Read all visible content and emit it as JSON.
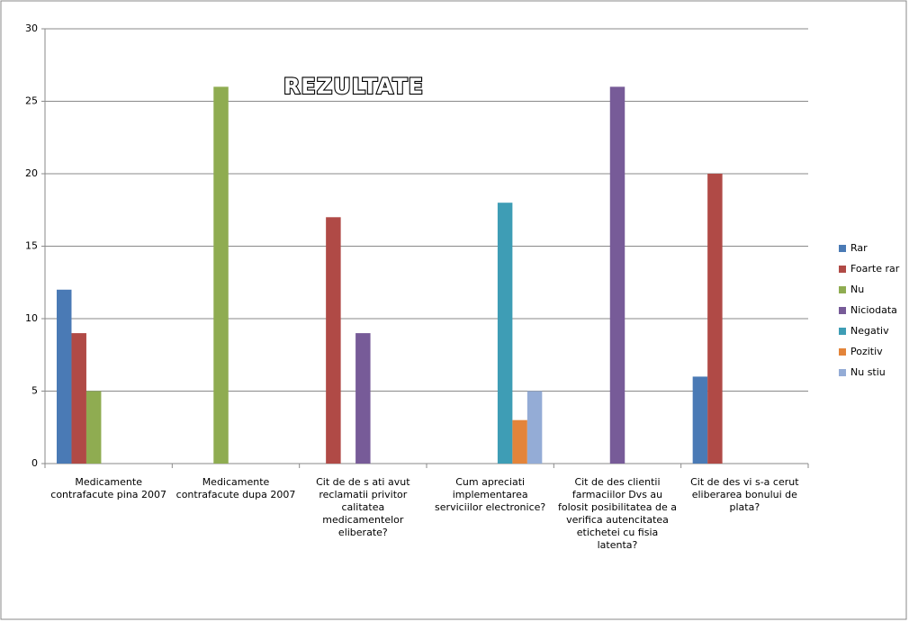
{
  "chart_data": {
    "type": "bar",
    "title": "REZULTATE",
    "categories": [
      "Medicamente contrafacute pina 2007",
      "Medicamente contrafacute dupa 2007",
      "Cit de de s ati avut reclamatii privitor calitatea medicamentelor eliberate?",
      "Cum apreciati implementarea serviciilor electronice?",
      "Cit de des clientii farmaciilor Dvs au folosit posibilitatea de a verifica autencitatea etichetei cu fisia latenta?",
      "Cit de des vi s-a cerut eliberarea bonului de plata?"
    ],
    "series": [
      {
        "name": "Rar",
        "color": "#4a7ab5",
        "values": [
          12,
          null,
          null,
          null,
          null,
          6
        ]
      },
      {
        "name": "Foarte rar",
        "color": "#b04a46",
        "values": [
          9,
          null,
          17,
          null,
          null,
          20
        ]
      },
      {
        "name": "Nu",
        "color": "#8fac51",
        "values": [
          5,
          26,
          null,
          null,
          null,
          null
        ]
      },
      {
        "name": "Niciodata",
        "color": "#775b98",
        "values": [
          null,
          null,
          9,
          null,
          26,
          null
        ]
      },
      {
        "name": "Negativ",
        "color": "#3e9db5",
        "values": [
          null,
          null,
          null,
          18,
          null,
          null
        ]
      },
      {
        "name": "Pozitiv",
        "color": "#e3843a",
        "values": [
          null,
          null,
          null,
          3,
          null,
          null
        ]
      },
      {
        "name": "Nu stiu",
        "color": "#94acd6",
        "values": [
          null,
          null,
          null,
          5,
          null,
          null
        ]
      }
    ],
    "ylim": [
      0,
      30
    ],
    "yticks": [
      0,
      5,
      10,
      15,
      20,
      25,
      30
    ],
    "grid": true,
    "legend": "right"
  }
}
